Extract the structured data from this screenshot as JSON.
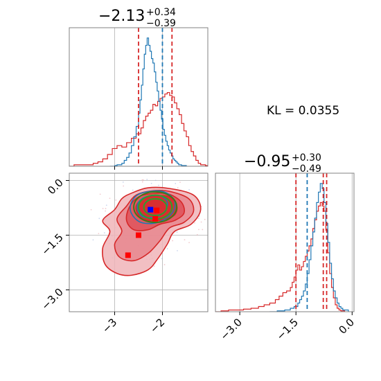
{
  "chart_data": {
    "type": "corner",
    "kl_text": "KL = 0.0355",
    "colors": {
      "blue": "#1f77b4",
      "red": "#d62728",
      "green": "#2ca02c",
      "dark_green": "#3d7a1a",
      "marker_blue": "#0000ff",
      "marker_red": "#ff0000",
      "grid": "#b0b0b0"
    },
    "params": [
      {
        "title": {
          "median": "−2.13",
          "plus": "+0.34",
          "minus": "−0.39"
        },
        "range": [
          -3.95,
          -1.05
        ],
        "ticks": [
          {
            "value": -3.0,
            "label": "−3"
          },
          {
            "value": -2.0,
            "label": "−2"
          }
        ],
        "blue_median": -2.0,
        "red_lines": [
          -2.5,
          -1.8
        ],
        "blue_hist": [
          [
            -3.1,
            0
          ],
          [
            -3.0,
            0.5
          ],
          [
            -2.95,
            1
          ],
          [
            -2.9,
            1
          ],
          [
            -2.85,
            2
          ],
          [
            -2.8,
            4
          ],
          [
            -2.75,
            6
          ],
          [
            -2.7,
            9
          ],
          [
            -2.65,
            14
          ],
          [
            -2.6,
            20
          ],
          [
            -2.55,
            27
          ],
          [
            -2.5,
            36
          ],
          [
            -2.47,
            45
          ],
          [
            -2.44,
            55
          ],
          [
            -2.41,
            66
          ],
          [
            -2.38,
            76
          ],
          [
            -2.35,
            82
          ],
          [
            -2.32,
            87
          ],
          [
            -2.29,
            82
          ],
          [
            -2.26,
            78
          ],
          [
            -2.23,
            73
          ],
          [
            -2.2,
            70
          ],
          [
            -2.17,
            64
          ],
          [
            -2.14,
            57
          ],
          [
            -2.11,
            51
          ],
          [
            -2.08,
            44
          ],
          [
            -2.05,
            38
          ],
          [
            -2.02,
            32
          ],
          [
            -1.99,
            25
          ],
          [
            -1.96,
            21
          ],
          [
            -1.93,
            17
          ],
          [
            -1.9,
            14
          ],
          [
            -1.87,
            11
          ],
          [
            -1.84,
            9
          ],
          [
            -1.81,
            7
          ],
          [
            -1.78,
            5
          ],
          [
            -1.75,
            4
          ],
          [
            -1.72,
            3
          ],
          [
            -1.69,
            2
          ],
          [
            -1.66,
            1
          ],
          [
            -1.6,
            0.5
          ],
          [
            -1.5,
            0
          ]
        ],
        "red_hist": [
          [
            -3.95,
            0
          ],
          [
            -3.85,
            1
          ],
          [
            -3.7,
            1
          ],
          [
            -3.55,
            1
          ],
          [
            -3.45,
            2
          ],
          [
            -3.35,
            3
          ],
          [
            -3.25,
            5
          ],
          [
            -3.15,
            8
          ],
          [
            -3.05,
            12
          ],
          [
            -2.95,
            14
          ],
          [
            -2.85,
            13
          ],
          [
            -2.75,
            16
          ],
          [
            -2.65,
            19
          ],
          [
            -2.55,
            22
          ],
          [
            -2.45,
            26
          ],
          [
            -2.4,
            31
          ],
          [
            -2.35,
            34
          ],
          [
            -2.3,
            36
          ],
          [
            -2.25,
            38
          ],
          [
            -2.2,
            42
          ],
          [
            -2.15,
            41
          ],
          [
            -2.1,
            44
          ],
          [
            -2.05,
            46
          ],
          [
            -2.0,
            47
          ],
          [
            -1.95,
            49
          ],
          [
            -1.9,
            50
          ],
          [
            -1.85,
            48
          ],
          [
            -1.8,
            47
          ],
          [
            -1.75,
            43
          ],
          [
            -1.7,
            39
          ],
          [
            -1.65,
            35
          ],
          [
            -1.6,
            29
          ],
          [
            -1.55,
            24
          ],
          [
            -1.5,
            20
          ],
          [
            -1.45,
            14
          ],
          [
            -1.4,
            10
          ],
          [
            -1.35,
            7
          ],
          [
            -1.3,
            4
          ],
          [
            -1.25,
            2
          ],
          [
            -1.2,
            1
          ],
          [
            -1.1,
            0.5
          ],
          [
            -1.05,
            0
          ]
        ]
      },
      {
        "title": {
          "median": "−0.95",
          "plus": "+0.30",
          "minus": "−0.49"
        },
        "range": [
          -3.65,
          0.05
        ],
        "ticks": [
          {
            "value": -3.0,
            "label": "−3.0"
          },
          {
            "value": -1.5,
            "label": "−1.5"
          },
          {
            "value": 0.0,
            "label": "0.0"
          }
        ],
        "blue_median": -1.2,
        "red_lines": [
          -1.5,
          -0.77,
          -0.68
        ],
        "blue_hist": [
          [
            -2.2,
            0
          ],
          [
            -2.0,
            0.5
          ],
          [
            -1.8,
            1
          ],
          [
            -1.65,
            2
          ],
          [
            -1.55,
            3
          ],
          [
            -1.45,
            5
          ],
          [
            -1.4,
            7
          ],
          [
            -1.35,
            9
          ],
          [
            -1.3,
            12
          ],
          [
            -1.25,
            16
          ],
          [
            -1.2,
            22
          ],
          [
            -1.15,
            30
          ],
          [
            -1.1,
            38
          ],
          [
            -1.05,
            46
          ],
          [
            -1.0,
            54
          ],
          [
            -0.95,
            63
          ],
          [
            -0.9,
            69
          ],
          [
            -0.85,
            74
          ],
          [
            -0.8,
            71
          ],
          [
            -0.75,
            63
          ],
          [
            -0.7,
            51
          ],
          [
            -0.65,
            40
          ],
          [
            -0.6,
            28
          ],
          [
            -0.55,
            19
          ],
          [
            -0.5,
            12
          ],
          [
            -0.45,
            8
          ],
          [
            -0.4,
            5
          ],
          [
            -0.35,
            3
          ],
          [
            -0.3,
            2
          ],
          [
            -0.25,
            1
          ],
          [
            -0.1,
            0
          ]
        ],
        "red_hist": [
          [
            -3.65,
            0
          ],
          [
            -3.5,
            0.5
          ],
          [
            -3.3,
            1
          ],
          [
            -3.1,
            1
          ],
          [
            -2.9,
            1.5
          ],
          [
            -2.7,
            2
          ],
          [
            -2.5,
            3
          ],
          [
            -2.35,
            4
          ],
          [
            -2.2,
            5
          ],
          [
            -2.05,
            7
          ],
          [
            -1.95,
            9
          ],
          [
            -1.85,
            11
          ],
          [
            -1.75,
            12
          ],
          [
            -1.65,
            14
          ],
          [
            -1.6,
            17
          ],
          [
            -1.55,
            20
          ],
          [
            -1.5,
            24
          ],
          [
            -1.45,
            27
          ],
          [
            -1.4,
            24
          ],
          [
            -1.35,
            26
          ],
          [
            -1.3,
            29
          ],
          [
            -1.25,
            32
          ],
          [
            -1.2,
            35
          ],
          [
            -1.15,
            38
          ],
          [
            -1.1,
            42
          ],
          [
            -1.05,
            48
          ],
          [
            -1.0,
            53
          ],
          [
            -0.95,
            58
          ],
          [
            -0.9,
            61
          ],
          [
            -0.85,
            63
          ],
          [
            -0.8,
            61
          ],
          [
            -0.75,
            58
          ],
          [
            -0.7,
            47
          ],
          [
            -0.65,
            34
          ],
          [
            -0.6,
            22
          ],
          [
            -0.55,
            14
          ],
          [
            -0.5,
            8
          ],
          [
            -0.45,
            4
          ],
          [
            -0.4,
            2
          ],
          [
            -0.35,
            1
          ],
          [
            -0.3,
            0.5
          ],
          [
            -0.2,
            0
          ]
        ]
      }
    ],
    "scatter_2d": {
      "red_levels": [
        [
          [
            -2.65,
            -0.35
          ],
          [
            -2.3,
            -0.2
          ],
          [
            -1.85,
            -0.22
          ],
          [
            -1.35,
            -0.4
          ],
          [
            -1.2,
            -0.8
          ],
          [
            -1.4,
            -1.2
          ],
          [
            -1.75,
            -1.4
          ],
          [
            -1.9,
            -1.75
          ],
          [
            -2.1,
            -2.15
          ],
          [
            -2.3,
            -2.45
          ],
          [
            -2.65,
            -2.6
          ],
          [
            -2.95,
            -2.55
          ],
          [
            -3.2,
            -2.3
          ],
          [
            -3.25,
            -1.85
          ],
          [
            -3.1,
            -1.4
          ],
          [
            -3.25,
            -1.1
          ],
          [
            -3.0,
            -0.8
          ],
          [
            -2.85,
            -0.5
          ]
        ],
        [
          [
            -2.55,
            -0.4
          ],
          [
            -2.2,
            -0.28
          ],
          [
            -1.85,
            -0.3
          ],
          [
            -1.45,
            -0.5
          ],
          [
            -1.35,
            -0.85
          ],
          [
            -1.55,
            -1.15
          ],
          [
            -1.85,
            -1.3
          ],
          [
            -2.05,
            -1.65
          ],
          [
            -2.3,
            -2.0
          ],
          [
            -2.6,
            -2.2
          ],
          [
            -2.9,
            -2.1
          ],
          [
            -3.0,
            -1.75
          ],
          [
            -2.85,
            -1.4
          ],
          [
            -2.95,
            -1.05
          ],
          [
            -2.75,
            -0.7
          ]
        ],
        [
          [
            -2.5,
            -0.45
          ],
          [
            -2.15,
            -0.35
          ],
          [
            -1.85,
            -0.38
          ],
          [
            -1.6,
            -0.6
          ],
          [
            -1.55,
            -0.9
          ],
          [
            -1.75,
            -1.1
          ],
          [
            -2.05,
            -1.2
          ],
          [
            -2.3,
            -1.35
          ],
          [
            -2.6,
            -1.35
          ],
          [
            -2.75,
            -1.1
          ],
          [
            -2.7,
            -0.75
          ]
        ],
        [
          [
            -2.4,
            -0.5
          ],
          [
            -2.1,
            -0.42
          ],
          [
            -1.85,
            -0.45
          ],
          [
            -1.7,
            -0.7
          ],
          [
            -1.75,
            -0.95
          ],
          [
            -2.0,
            -1.08
          ],
          [
            -2.3,
            -1.1
          ],
          [
            -2.5,
            -0.95
          ],
          [
            -2.55,
            -0.7
          ]
        ]
      ],
      "blue_levels": [
        [
          [
            -2.45,
            -0.35
          ],
          [
            -2.0,
            -0.3
          ],
          [
            -1.75,
            -0.55
          ],
          [
            -1.8,
            -0.9
          ],
          [
            -2.1,
            -1.15
          ],
          [
            -2.45,
            -1.15
          ],
          [
            -2.65,
            -0.9
          ],
          [
            -2.65,
            -0.6
          ]
        ],
        [
          [
            -2.35,
            -0.45
          ],
          [
            -2.05,
            -0.42
          ],
          [
            -1.9,
            -0.6
          ],
          [
            -1.95,
            -0.85
          ],
          [
            -2.15,
            -1.0
          ],
          [
            -2.4,
            -1.0
          ],
          [
            -2.52,
            -0.8
          ],
          [
            -2.5,
            -0.6
          ]
        ]
      ],
      "green_ellipses": [
        {
          "cx": -2.15,
          "cy": -0.73,
          "rx": 0.45,
          "ry": 0.42
        },
        {
          "cx": -2.15,
          "cy": -0.73,
          "rx": 0.35,
          "ry": 0.33
        },
        {
          "cx": -2.15,
          "cy": -0.73,
          "rx": 0.24,
          "ry": 0.23
        }
      ],
      "blue_marker": [
        -2.25,
        -0.8
      ],
      "red_markers": [
        [
          -2.12,
          -0.82
        ],
        [
          -2.15,
          -1.05
        ],
        [
          -2.5,
          -1.5
        ],
        [
          -2.72,
          -2.05
        ]
      ],
      "ylim": [
        -3.6,
        0.2
      ],
      "yticks": [
        {
          "value": 0.0,
          "label": "0.0"
        },
        {
          "value": -1.5,
          "label": "−1.5"
        },
        {
          "value": -3.0,
          "label": "−3.0"
        }
      ]
    }
  }
}
